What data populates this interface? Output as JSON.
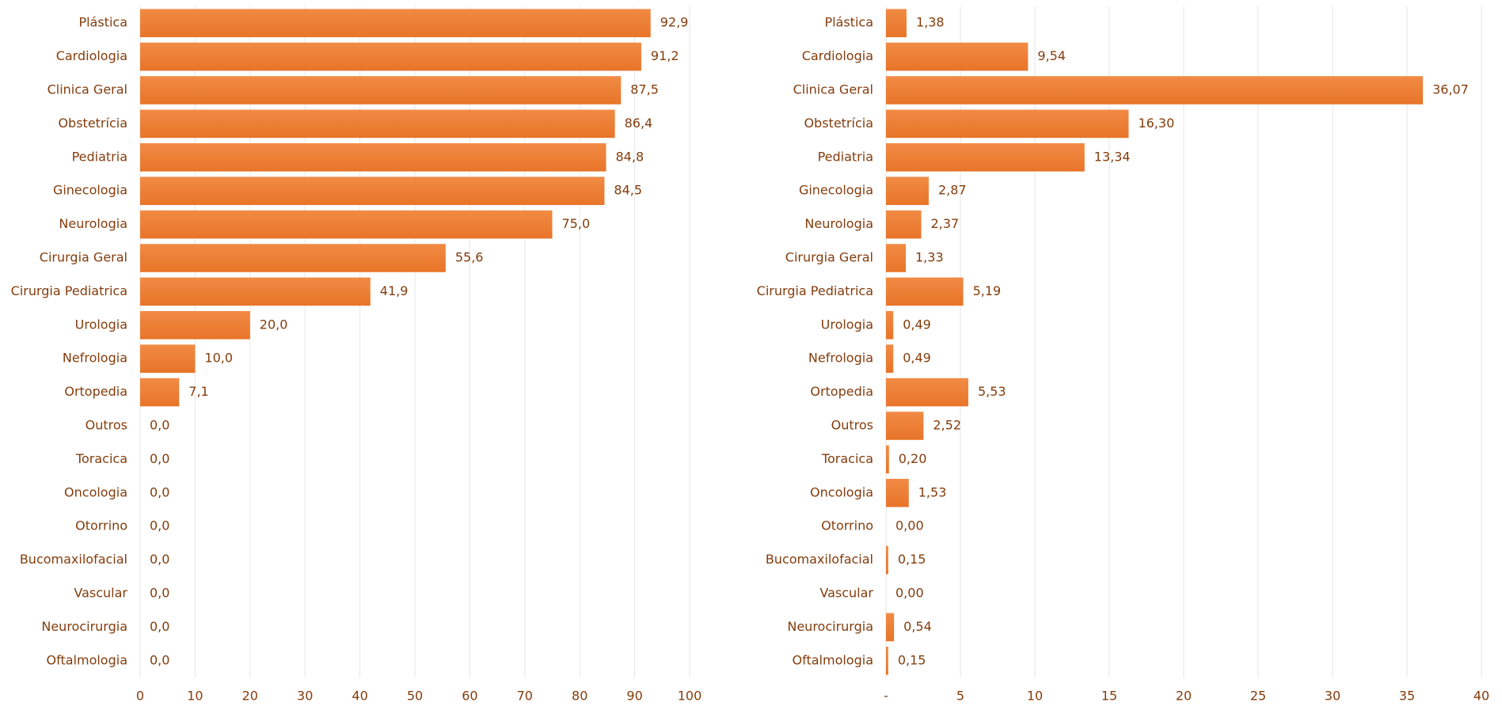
{
  "chart_data": [
    {
      "type": "bar",
      "orientation": "horizontal",
      "color": "#ed7d31",
      "grid": true,
      "categories": [
        "Plástica",
        "Cardiologia",
        "Clinica Geral",
        "Obstetrícia",
        "Pediatria",
        "Ginecologia",
        "Neurologia",
        "Cirurgia Geral",
        "Cirurgia Pediatrica",
        "Urologia",
        "Nefrologia",
        "Ortopedia",
        "Outros",
        "Toracica",
        "Oncologia",
        "Otorrino",
        "Bucomaxilofacial",
        "Vascular",
        "Neurocirurgia",
        "Oftalmologia"
      ],
      "values": [
        92.9,
        91.2,
        87.5,
        86.4,
        84.8,
        84.5,
        75.0,
        55.6,
        41.9,
        20.0,
        10.0,
        7.1,
        0,
        0,
        0,
        0,
        0,
        0,
        0,
        0
      ],
      "value_labels": [
        "92,9",
        "91,2",
        "87,5",
        "86,4",
        "84,8",
        "84,5",
        "75,0",
        "55,6",
        "41,9",
        "20,0",
        "10,0",
        "7,1",
        "0,0",
        "0,0",
        "0,0",
        "0,0",
        "0,0",
        "0,0",
        "0,0",
        "0,0"
      ],
      "xlim": [
        0,
        100
      ],
      "xticks": [
        0,
        10,
        20,
        30,
        40,
        50,
        60,
        70,
        80,
        90,
        100
      ]
    },
    {
      "type": "bar",
      "orientation": "horizontal",
      "color": "#ed7d31",
      "grid": true,
      "categories": [
        "Plástica",
        "Cardiologia",
        "Clinica Geral",
        "Obstetrícia",
        "Pediatria",
        "Ginecologia",
        "Neurologia",
        "Cirurgia Geral",
        "Cirurgia Pediatrica",
        "Urologia",
        "Nefrologia",
        "Ortopedia",
        "Outros",
        "Toracica",
        "Oncologia",
        "Otorrino",
        "Bucomaxilofacial",
        "Vascular",
        "Neurocirurgia",
        "Oftalmologia"
      ],
      "values": [
        1.38,
        9.54,
        36.07,
        16.3,
        13.34,
        2.87,
        2.37,
        1.33,
        5.19,
        0.49,
        0.49,
        5.53,
        2.52,
        0.2,
        1.53,
        0,
        0.15,
        0,
        0.54,
        0.15
      ],
      "value_labels": [
        "1,38",
        "9,54",
        "36,07",
        "16,30",
        "13,34",
        "2,87",
        "2,37",
        "1,33",
        "5,19",
        "0,49",
        "0,49",
        "5,53",
        "2,52",
        "0,20",
        "1,53",
        "0,00",
        "0,15",
        "0,00",
        "0,54",
        "0,15"
      ],
      "xlim": [
        0,
        40
      ],
      "xticks": [
        {
          "value": 0,
          "label": "-"
        },
        5,
        10,
        15,
        20,
        25,
        30,
        35,
        40
      ]
    }
  ]
}
